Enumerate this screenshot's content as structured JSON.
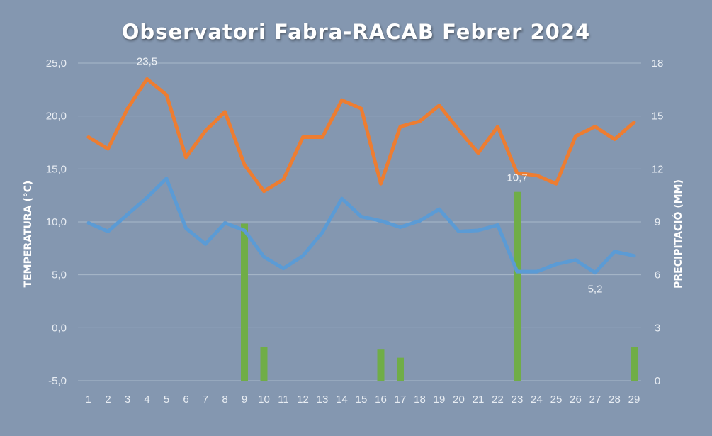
{
  "chart_data": {
    "type": "line",
    "title": "Observatori Fabra-RACAB Febrer 2024",
    "ylabel": "TEMPERATURA (°C)",
    "y2label": "PRECIPITACIÓ (MM)",
    "xlabel": "",
    "ylim": [
      -5,
      25
    ],
    "y2lim": [
      0,
      18
    ],
    "y_ticks": [
      "-5,0",
      "0,0",
      "5,0",
      "10,0",
      "15,0",
      "20,0",
      "25,0"
    ],
    "y2_ticks": [
      "0",
      "3",
      "6",
      "9",
      "12",
      "15",
      "18"
    ],
    "grid": true,
    "categories": [
      "1",
      "2",
      "3",
      "4",
      "5",
      "6",
      "7",
      "8",
      "9",
      "10",
      "11",
      "12",
      "13",
      "14",
      "15",
      "16",
      "17",
      "18",
      "19",
      "20",
      "21",
      "22",
      "23",
      "24",
      "25",
      "26",
      "27",
      "28",
      "29"
    ],
    "series": [
      {
        "type": "line",
        "axis": "left",
        "color": "#ed7d31",
        "values": [
          18.0,
          16.9,
          20.7,
          23.5,
          22.0,
          16.1,
          18.6,
          20.4,
          15.4,
          12.9,
          14.0,
          18.0,
          18.0,
          21.5,
          20.7,
          13.6,
          19.0,
          19.5,
          21.0,
          18.7,
          16.5,
          19.0,
          14.6,
          14.4,
          13.6,
          18.1,
          19.0,
          17.8,
          19.4
        ]
      },
      {
        "type": "line",
        "axis": "left",
        "color": "#5b9bd5",
        "values": [
          9.9,
          9.1,
          10.7,
          12.3,
          14.1,
          9.4,
          7.9,
          9.9,
          9.2,
          6.7,
          5.6,
          6.8,
          9.0,
          12.2,
          10.5,
          10.1,
          9.5,
          10.1,
          11.2,
          9.1,
          9.2,
          9.7,
          5.3,
          5.3,
          6.0,
          6.4,
          5.2,
          7.2,
          6.8
        ]
      },
      {
        "type": "bar",
        "axis": "right",
        "color": "#70ad47",
        "values": [
          0,
          0,
          0,
          0,
          0,
          0,
          0,
          0,
          8.9,
          1.9,
          0,
          0,
          0,
          0,
          0,
          1.8,
          1.3,
          0,
          0,
          0,
          0,
          0,
          10.7,
          0,
          0,
          0,
          0,
          0,
          1.9
        ]
      }
    ],
    "annotations": [
      {
        "text": "23,5"
      },
      {
        "text": "10,7"
      },
      {
        "text": "5,2"
      }
    ]
  }
}
